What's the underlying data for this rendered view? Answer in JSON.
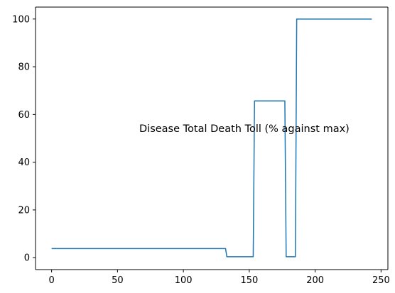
{
  "chart_data": {
    "type": "line",
    "title": "",
    "xlabel": "",
    "ylabel": "",
    "annotation": "Disease Total Death Toll  (% against max)",
    "xlim": [
      -12.2,
      255.2
    ],
    "ylim": [
      -5,
      105
    ],
    "x_ticks": [
      0,
      50,
      100,
      150,
      200,
      250
    ],
    "y_ticks": [
      0,
      20,
      40,
      60,
      80,
      100
    ],
    "grid": false,
    "legend": "none",
    "series": [
      {
        "color": "#1f77b4",
        "x": [
          0,
          132,
          133,
          153,
          154,
          177,
          178,
          185,
          186,
          243
        ],
        "y": [
          3.8,
          3.8,
          0.4,
          0.4,
          65.7,
          65.7,
          0.4,
          0.4,
          100,
          100
        ]
      }
    ]
  }
}
